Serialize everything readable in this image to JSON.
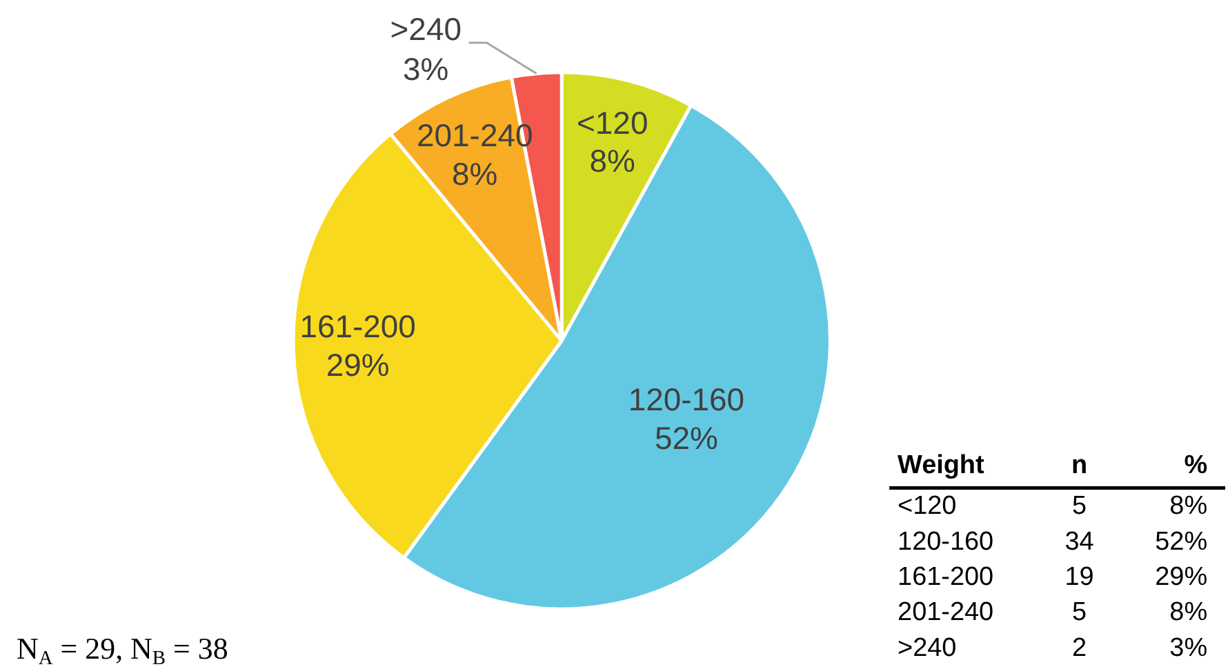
{
  "chart_data": [
    {
      "type": "pie",
      "categories": [
        "<120",
        "120-160",
        "161-200",
        "201-240",
        ">240"
      ],
      "values": [
        8,
        52,
        29,
        8,
        3
      ],
      "colors": [
        "#d5dd23",
        "#63c9e3",
        "#f9d91d",
        "#f9ad24",
        "#f3574d"
      ],
      "value_labels": [
        "8%",
        "52%",
        "29%",
        "8%",
        "3%"
      ],
      "annotations": [
        "N$_{A}$ = 29, N$_{B}$ = 38"
      ]
    },
    {
      "type": "other",
      "categories": [
        "<120",
        "120-160",
        "161-200",
        "201-240",
        ">240"
      ],
      "xlabel": "Weight",
      "series": [
        {
          "name": "n",
          "values": [
            5,
            34,
            19,
            5,
            2
          ]
        },
        {
          "name": "%",
          "values": [
            8,
            52,
            29,
            8,
            3
          ],
          "value_labels": [
            "8%",
            "52%",
            "29%",
            "8%",
            "3%"
          ]
        }
      ],
      "data_labels": true
    }
  ]
}
